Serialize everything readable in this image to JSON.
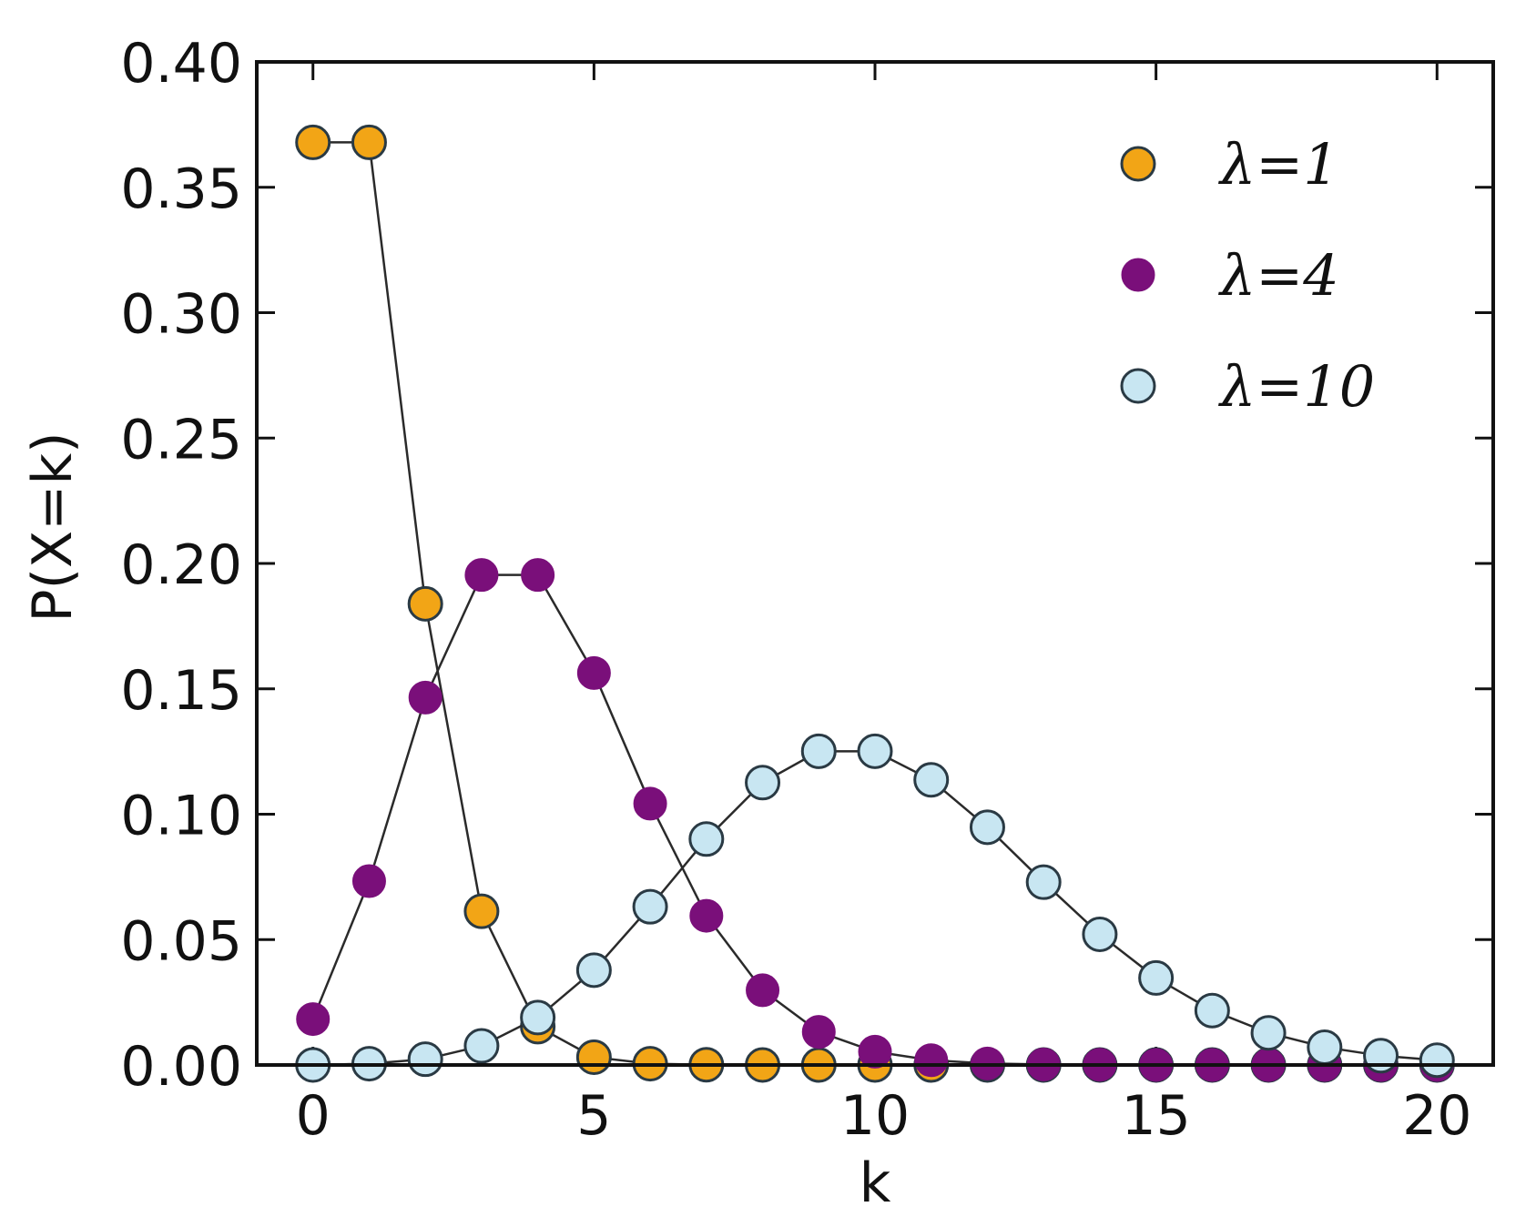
{
  "chart_data": {
    "type": "line",
    "title": "",
    "xlabel": "k",
    "ylabel": "P(X=k)",
    "xlim": [
      -1,
      21
    ],
    "ylim": [
      0,
      0.4
    ],
    "xticks": [
      0,
      5,
      10,
      15,
      20
    ],
    "yticks": [
      0.0,
      0.05,
      0.1,
      0.15,
      0.2,
      0.25,
      0.3,
      0.35,
      0.4
    ],
    "grid": false,
    "legend": "top-right",
    "x": [
      0,
      1,
      2,
      3,
      4,
      5,
      6,
      7,
      8,
      9,
      10,
      11,
      12,
      13,
      14,
      15,
      16,
      17,
      18,
      19,
      20
    ],
    "series": [
      {
        "name": "λ=1",
        "color": "#f2a516",
        "values": [
          0.3679,
          0.3679,
          0.1839,
          0.0613,
          0.0153,
          0.0031,
          0.0005,
          0.0001,
          0.0,
          0.0,
          0.0,
          0.0,
          0.0,
          0.0,
          0.0,
          0.0,
          0.0,
          0.0,
          0.0,
          0.0,
          0.0
        ]
      },
      {
        "name": "λ=4",
        "color": "#7a0f7a",
        "values": [
          0.0183,
          0.0733,
          0.1465,
          0.1954,
          0.1954,
          0.1563,
          0.1042,
          0.0595,
          0.0298,
          0.0132,
          0.0053,
          0.0019,
          0.0006,
          0.0002,
          0.0001,
          0.0,
          0.0,
          0.0,
          0.0,
          0.0,
          0.0
        ]
      },
      {
        "name": "λ=10",
        "color": "#c8e6f2",
        "values": [
          0.0,
          0.0005,
          0.0023,
          0.0076,
          0.0189,
          0.0378,
          0.0631,
          0.0901,
          0.1126,
          0.1251,
          0.1251,
          0.1137,
          0.0948,
          0.0729,
          0.0521,
          0.0347,
          0.0217,
          0.0128,
          0.0071,
          0.0037,
          0.0019
        ]
      }
    ]
  }
}
